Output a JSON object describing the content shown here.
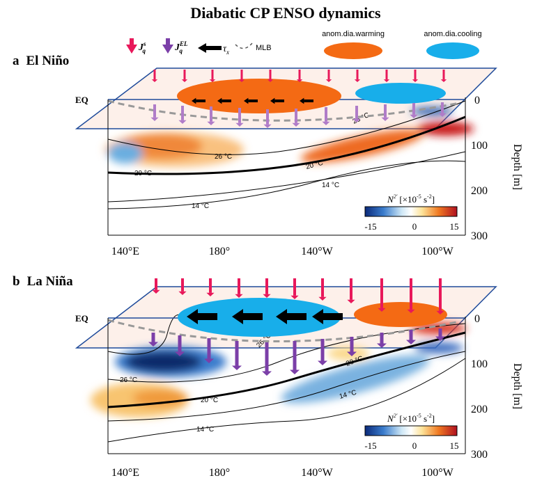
{
  "title": "Diabatic CP ENSO dynamics",
  "legend": {
    "jqs": "J",
    "jqs_sup": "s",
    "jqs_sub": "q",
    "jqel": "J",
    "jqel_sup": "EL",
    "jqel_sub": "q",
    "taux": "τ",
    "taux_sub": "x",
    "mlb": "MLB",
    "warming": "anom.dia.warming",
    "cooling": "anom.dia.cooling",
    "colors": {
      "jqs": "#e8185a",
      "jqel": "#7b3fa8",
      "warming": "#f46a14",
      "cooling": "#18aeea"
    }
  },
  "panels": [
    {
      "letter": "a",
      "name": "El Niño",
      "eq": "EQ",
      "contours": [
        "26 °C",
        "20 °C",
        "26 °C",
        "20 °C",
        "14 °C",
        "14 °C"
      ],
      "colorbar": {
        "label": "N",
        "sup": "2′",
        "unit": "[×10",
        "exp": "-5",
        "unit2": " s",
        "exp2": "-2",
        "unit3": "]",
        "ticks": [
          "-15",
          "0",
          "15"
        ]
      },
      "depth_label": "Depth [m]",
      "depth_ticks": [
        "0",
        "100",
        "200",
        "300"
      ],
      "x_ticks": [
        "140°E",
        "180°",
        "140°W",
        "100°W"
      ]
    },
    {
      "letter": "b",
      "name": "La Niña",
      "eq": "EQ",
      "contours": [
        "26 °C",
        "20 °C",
        "20 °C",
        "14 °C",
        "14 °C",
        "26 °C"
      ],
      "colorbar": {
        "label": "N",
        "sup": "2′",
        "unit": "[×10",
        "exp": "-5",
        "unit2": " s",
        "exp2": "-2",
        "unit3": "]",
        "ticks": [
          "-15",
          "0",
          "15"
        ]
      },
      "depth_label": "Depth [m]",
      "depth_ticks": [
        "0",
        "100",
        "200",
        "300"
      ],
      "x_ticks": [
        "140°E",
        "180°",
        "140°W",
        "100°W"
      ]
    }
  ]
}
